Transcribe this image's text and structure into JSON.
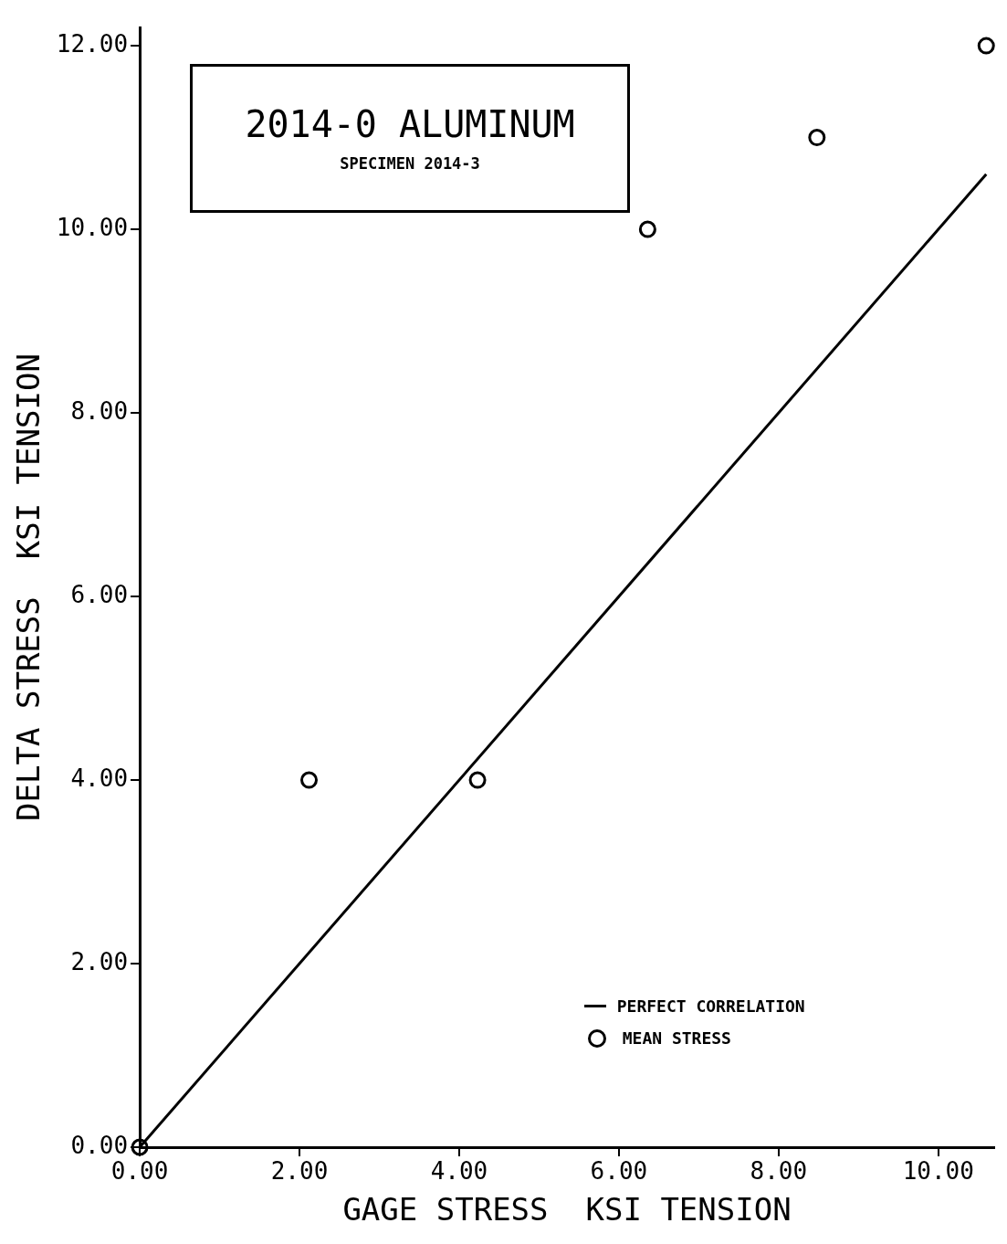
{
  "chart_data": {
    "type": "scatter",
    "title": "2014-0  ALUMINUM",
    "subtitle": "SPECIMEN 2014-3",
    "xlabel": "GAGE STRESS  KSI TENSION",
    "ylabel": "DELTA STRESS  KSI TENSION",
    "xlim": [
      0,
      10.7
    ],
    "ylim": [
      0,
      12.2
    ],
    "xticks": [
      {
        "value": 0,
        "label": "0.00"
      },
      {
        "value": 2,
        "label": "2.00"
      },
      {
        "value": 4,
        "label": "4.00"
      },
      {
        "value": 6,
        "label": "6.00"
      },
      {
        "value": 8,
        "label": "8.00"
      },
      {
        "value": 10,
        "label": "10.00"
      }
    ],
    "yticks": [
      {
        "value": 0,
        "label": "0.00"
      },
      {
        "value": 2,
        "label": "2.00"
      },
      {
        "value": 4,
        "label": "4.00"
      },
      {
        "value": 6,
        "label": "6.00"
      },
      {
        "value": 8,
        "label": "8.00"
      },
      {
        "value": 10,
        "label": "10.00"
      },
      {
        "value": 12,
        "label": "12.00"
      }
    ],
    "series": [
      {
        "name": "PERFECT CORRELATION",
        "type": "line",
        "marker": "none",
        "line_style": "solid",
        "color": "#000000",
        "x": [
          0,
          10.6
        ],
        "values": [
          0,
          10.6
        ]
      },
      {
        "name": "MEAN STRESS",
        "marker": "circle",
        "color": "#000000",
        "x": [
          0,
          2.12,
          4.23,
          6.36,
          8.48,
          10.6
        ],
        "values": [
          0,
          4.0,
          4.0,
          10.0,
          11.0,
          12.0
        ]
      }
    ],
    "legend": "bottom right",
    "grid": false
  }
}
